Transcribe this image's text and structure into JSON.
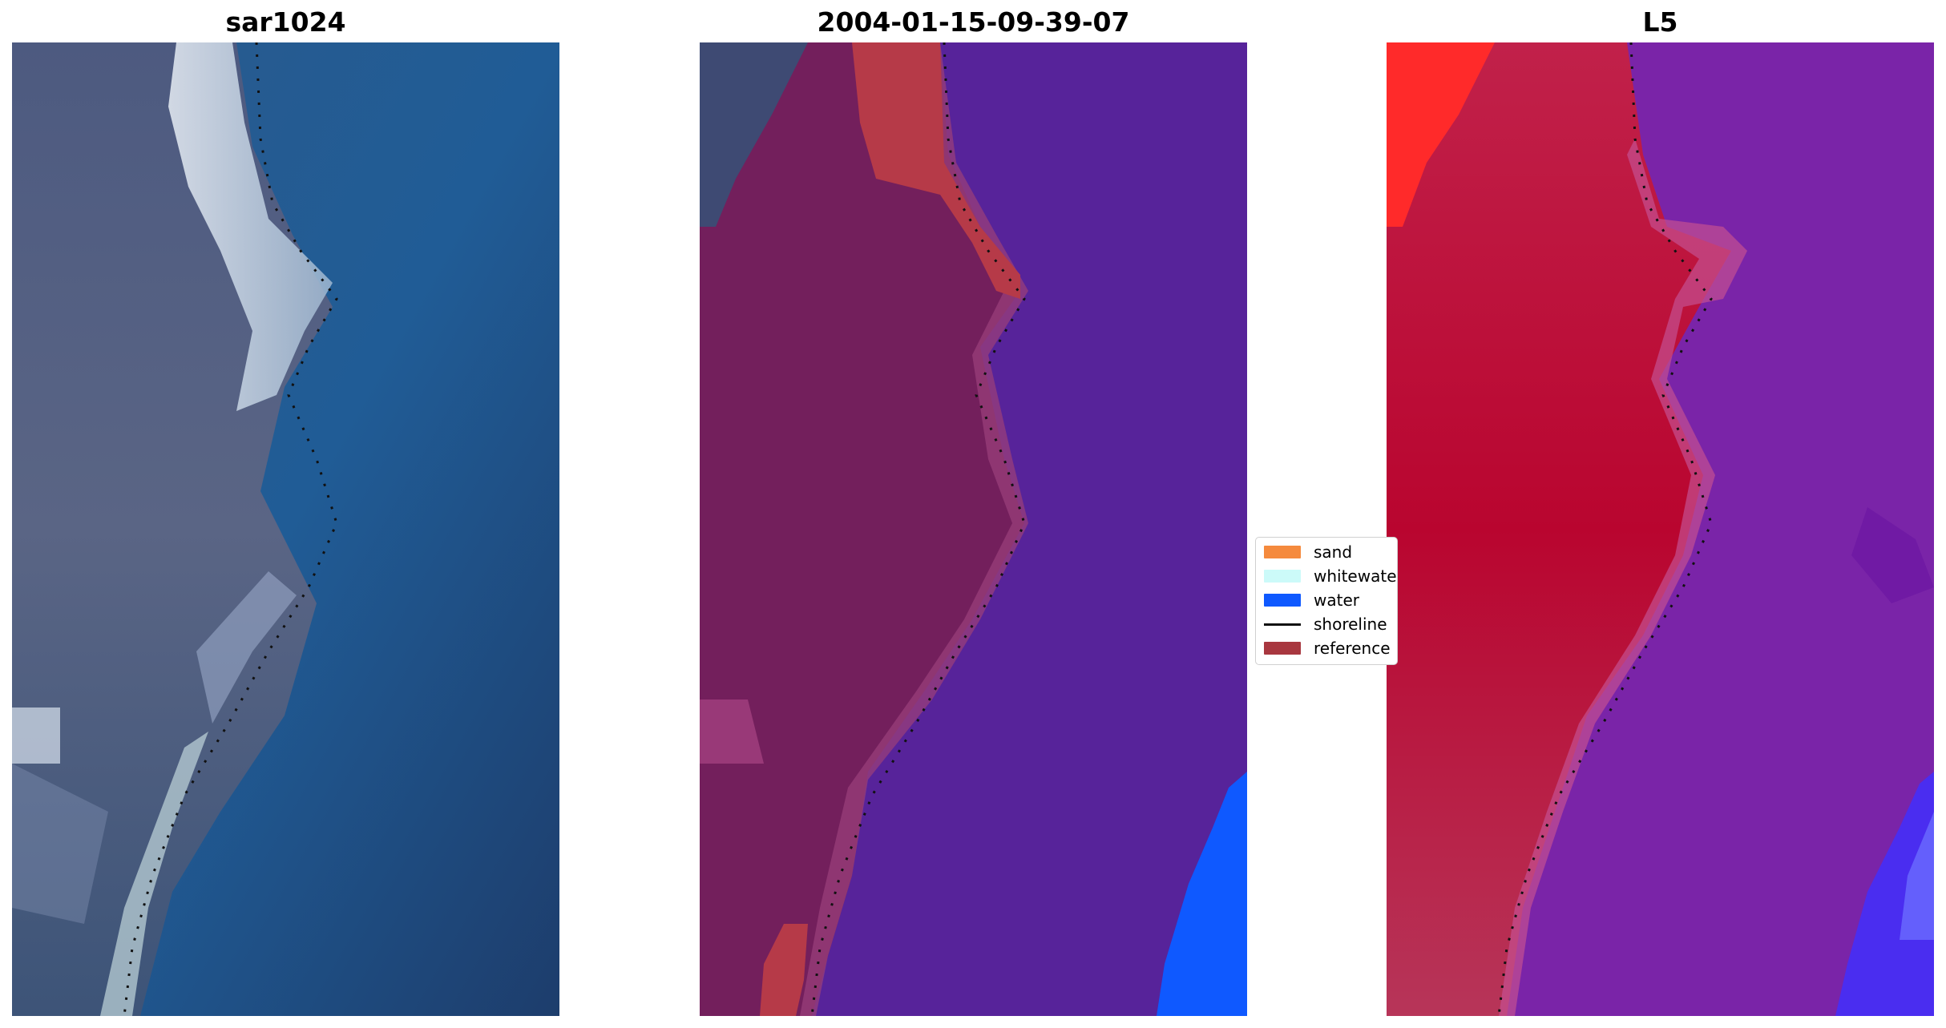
{
  "panels": [
    {
      "title": "sar1024"
    },
    {
      "title": "2004-01-15-09-39-07"
    },
    {
      "title": "L5"
    }
  ],
  "legend": [
    {
      "label": "sand",
      "color": "#f58a3d",
      "kind": "patch"
    },
    {
      "label": "whitewater",
      "color": "#ccfaf9",
      "kind": "patch"
    },
    {
      "label": "water",
      "color": "#0f59ff",
      "kind": "patch"
    },
    {
      "label": "shoreline",
      "color": "#111111",
      "kind": "line"
    },
    {
      "label": "reference",
      "color": "#a8373f",
      "kind": "patch"
    }
  ]
}
